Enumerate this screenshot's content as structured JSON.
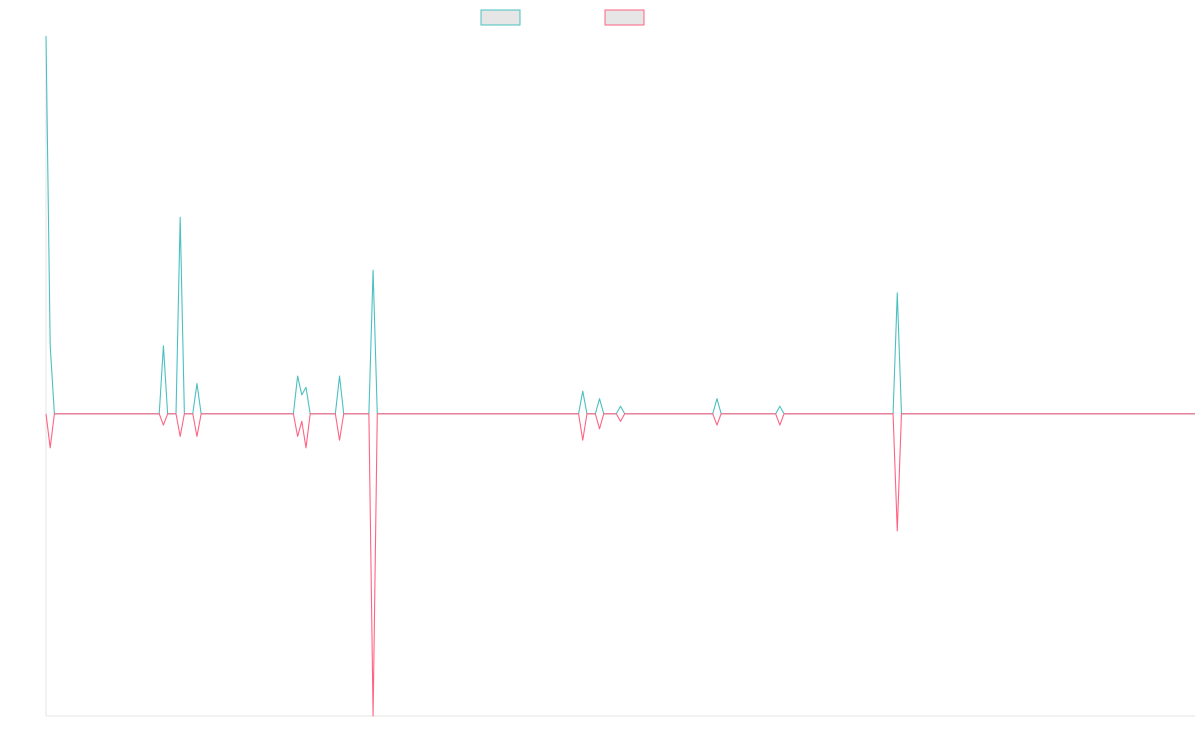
{
  "chart_data": {
    "type": "line",
    "title": "",
    "xlabel": "",
    "ylabel": "",
    "grid": false,
    "legend_position": "top-center",
    "ylim": [
      -80,
      100
    ],
    "x": [
      0,
      1,
      2,
      3,
      4,
      5,
      6,
      7,
      8,
      9,
      10,
      11,
      12,
      13,
      14,
      15,
      16,
      17,
      18,
      19,
      20,
      21,
      22,
      23,
      24,
      25,
      26,
      27,
      28,
      29,
      30,
      31,
      32,
      33,
      34,
      35,
      36,
      37,
      38,
      39,
      40,
      41,
      42,
      43,
      44,
      45,
      46,
      47,
      48,
      49,
      50,
      51,
      52,
      53,
      54,
      55,
      56,
      57,
      58,
      59,
      60,
      61,
      62,
      63,
      64,
      65,
      66,
      67,
      68,
      69,
      70,
      71,
      72,
      73,
      74,
      75,
      76,
      77,
      78,
      79,
      80,
      81,
      82,
      83,
      84,
      85,
      86,
      87,
      88,
      89,
      90,
      91,
      92,
      93,
      94,
      95,
      96,
      97,
      98,
      99,
      100,
      101,
      102,
      103,
      104,
      105,
      106,
      107,
      108,
      109,
      110,
      111,
      112,
      113,
      114,
      115,
      116,
      117,
      118,
      119,
      120,
      121,
      122,
      123,
      124,
      125,
      126,
      127,
      128,
      129,
      130,
      131,
      132,
      133,
      134,
      135,
      136,
      137,
      138,
      139,
      140,
      141,
      142,
      143,
      144,
      145,
      146,
      147,
      148,
      149,
      150,
      151,
      152,
      153,
      154,
      155,
      156,
      157,
      158,
      159,
      160,
      161,
      162,
      163,
      164,
      165,
      166,
      167,
      168,
      169,
      170,
      171,
      172,
      173,
      174,
      175,
      176,
      177,
      178,
      179,
      180,
      181,
      182,
      183,
      184,
      185,
      186,
      187,
      188,
      189,
      190,
      191,
      192,
      193,
      194,
      195,
      196,
      197,
      198,
      199,
      200,
      201,
      202,
      203,
      204,
      205,
      206,
      207,
      208,
      209,
      210,
      211,
      212,
      213,
      214,
      215,
      216,
      217,
      218,
      219,
      220,
      221,
      222,
      223,
      224,
      225,
      226,
      227,
      228,
      229,
      230,
      231,
      232,
      233,
      234,
      235,
      236,
      237,
      238,
      239,
      240,
      241,
      242,
      243,
      244,
      245,
      246,
      247,
      248,
      249,
      250,
      251,
      252,
      253,
      254,
      255,
      256,
      257,
      258,
      259,
      260,
      261,
      262,
      263,
      264,
      265,
      266,
      267,
      268,
      269,
      270,
      271,
      272,
      273,
      274
    ],
    "series": [
      {
        "color": "#4bc0c0",
        "spikes": {
          "0": 100,
          "1": 18,
          "28": 18,
          "32": 52,
          "36": 8,
          "60": 10,
          "61": 5,
          "62": 7,
          "70": 10,
          "78": 38,
          "128": 6,
          "132": 4,
          "137": 2,
          "160": 4,
          "175": 2,
          "203": 32
        }
      },
      {
        "color": "#ff6384",
        "spikes": {
          "0": 0,
          "1": -9,
          "28": -3,
          "32": -6,
          "36": -6,
          "60": -6,
          "61": -2,
          "62": -9,
          "70": -7,
          "78": -80,
          "128": -7,
          "132": -4,
          "137": -2,
          "160": -3,
          "175": -3,
          "203": -31
        }
      }
    ]
  }
}
